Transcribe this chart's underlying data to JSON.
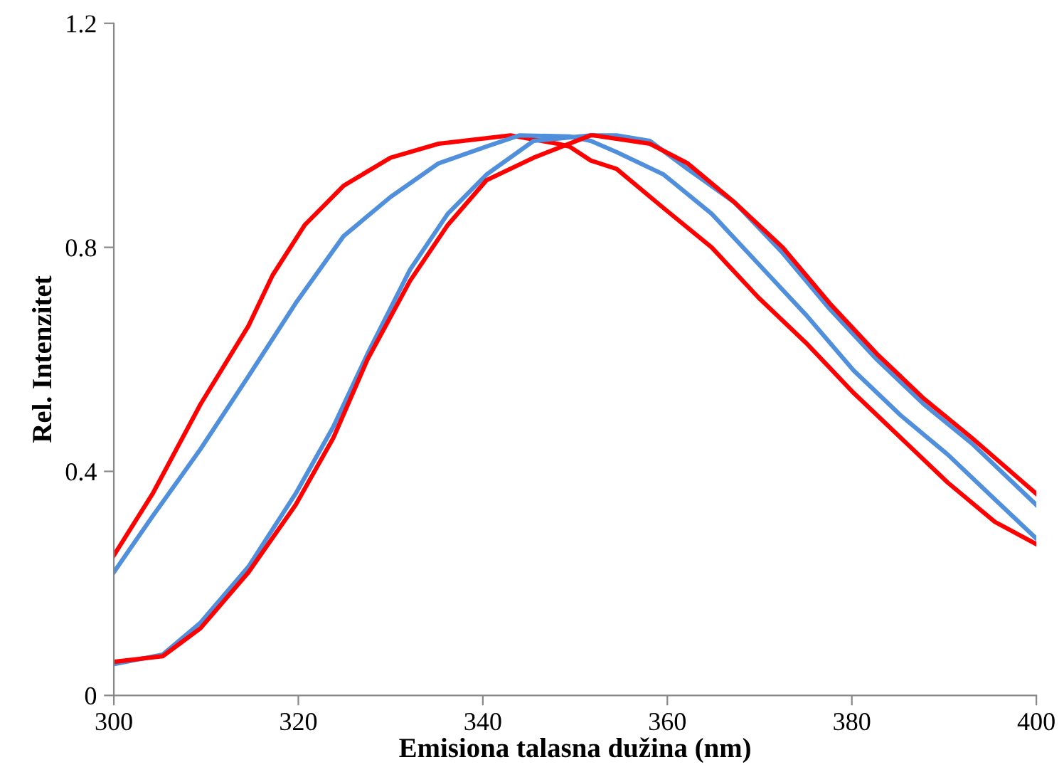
{
  "chart_data": {
    "type": "line",
    "xlabel": "Emisiona talasna dužina (nm)",
    "ylabel": "Rel. Intenzitet",
    "xlim": [
      300,
      400
    ],
    "xticks": [
      300,
      320,
      340,
      360,
      380,
      400
    ],
    "ylim": [
      0,
      1.2
    ],
    "yticks": [
      {
        "value": 0,
        "label": "0"
      },
      0.4,
      0.8,
      1.2
    ],
    "marker": "none",
    "line_style": "solid",
    "series": [
      {
        "color": "#ff0000",
        "x": [
          300,
          304.2,
          309.4,
          314.6,
          317.2,
          320.7,
          324.9,
          330,
          335.2,
          343,
          348.1,
          349.4,
          351.7,
          354.5,
          359.6,
          364.8,
          369.9,
          375,
          380.2,
          385.3,
          390.4,
          395.5,
          400
        ],
        "values": [
          0.25,
          0.36,
          0.52,
          0.66,
          0.75,
          0.84,
          0.91,
          0.96,
          0.985,
          1.0,
          0.985,
          0.98,
          0.955,
          0.94,
          0.87,
          0.8,
          0.71,
          0.63,
          0.54,
          0.46,
          0.38,
          0.31,
          0.27
        ]
      },
      {
        "color": "#4f8fdc",
        "x": [
          300,
          304.2,
          309.4,
          314.6,
          319.7,
          324.9,
          330,
          335.2,
          340.4,
          344,
          349.4,
          351.7,
          354.5,
          359.6,
          364.8,
          369.9,
          375,
          380.2,
          385.3,
          390.4,
          395.5,
          400
        ],
        "values": [
          0.22,
          0.32,
          0.44,
          0.57,
          0.7,
          0.82,
          0.89,
          0.95,
          0.98,
          1.0,
          0.998,
          0.99,
          0.97,
          0.93,
          0.86,
          0.77,
          0.68,
          0.58,
          0.5,
          0.43,
          0.35,
          0.28
        ]
      },
      {
        "color": "#4f8fdc",
        "x": [
          300,
          305.3,
          309.4,
          314.6,
          319.7,
          323.8,
          327.5,
          332.1,
          336.2,
          340.4,
          345.5,
          351.7,
          354.5,
          358.1,
          362.2,
          367.3,
          372.5,
          377.6,
          382.7,
          387.8,
          393,
          400
        ],
        "values": [
          0.056,
          0.073,
          0.13,
          0.23,
          0.36,
          0.48,
          0.61,
          0.76,
          0.86,
          0.93,
          0.99,
          1.0,
          1.0,
          0.99,
          0.94,
          0.88,
          0.79,
          0.69,
          0.6,
          0.52,
          0.45,
          0.34
        ]
      },
      {
        "color": "#ff0000",
        "x": [
          300,
          305.3,
          309.4,
          314.6,
          319.7,
          323.8,
          327.5,
          332.1,
          336.2,
          340.4,
          345.5,
          351.7,
          352,
          358.1,
          362.2,
          367.3,
          372.5,
          377.6,
          382.7,
          387.8,
          393,
          400
        ],
        "values": [
          0.06,
          0.07,
          0.12,
          0.22,
          0.34,
          0.46,
          0.6,
          0.74,
          0.84,
          0.92,
          0.96,
          1.0,
          1.0,
          0.985,
          0.95,
          0.88,
          0.8,
          0.7,
          0.61,
          0.53,
          0.46,
          0.36
        ]
      }
    ]
  }
}
